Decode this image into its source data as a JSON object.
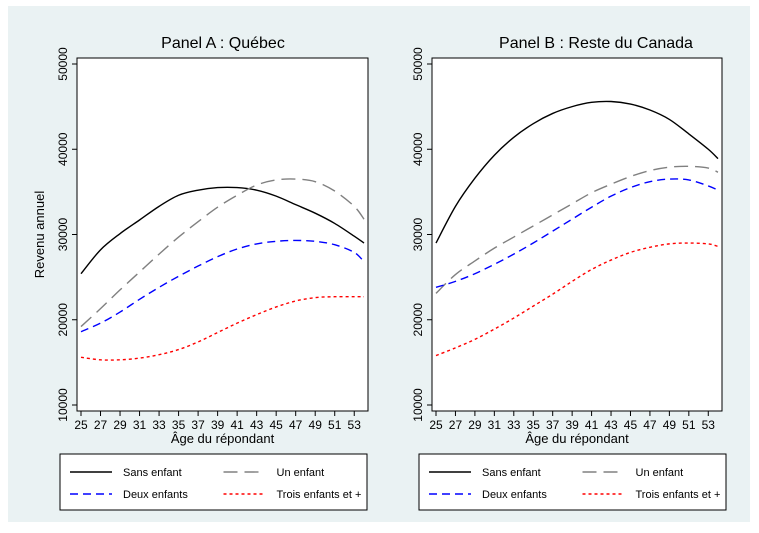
{
  "chart_data": [
    {
      "type": "line",
      "title": "Panel A : Québec",
      "xlabel": "Âge du répondant",
      "ylabel": "Revenu annuel",
      "xlim": [
        25,
        54
      ],
      "ylim": [
        10000,
        50000
      ],
      "x_ticks": [
        25,
        27,
        29,
        31,
        33,
        35,
        37,
        39,
        41,
        43,
        45,
        47,
        49,
        51,
        53
      ],
      "y_ticks": [
        10000,
        20000,
        30000,
        40000,
        50000
      ],
      "grid": false,
      "series": [
        {
          "name": "Sans enfant",
          "color": "#000000",
          "dash": "solid",
          "x": [
            25,
            27,
            29,
            31,
            33,
            35,
            37,
            39,
            41,
            43,
            45,
            47,
            49,
            51,
            53,
            54
          ],
          "y": [
            25400,
            28200,
            30100,
            31700,
            33300,
            34600,
            35200,
            35500,
            35500,
            35200,
            34500,
            33500,
            32500,
            31300,
            29800,
            29000
          ]
        },
        {
          "name": "Un enfant",
          "color": "#808080",
          "dash": "long",
          "x": [
            25,
            27,
            29,
            31,
            33,
            35,
            37,
            39,
            41,
            43,
            45,
            47,
            49,
            51,
            53,
            54
          ],
          "y": [
            19200,
            21300,
            23500,
            25600,
            27700,
            29700,
            31500,
            33200,
            34600,
            35800,
            36400,
            36500,
            36200,
            35100,
            33300,
            31800
          ]
        },
        {
          "name": "Deux enfants",
          "color": "#0000ff",
          "dash": "medium",
          "x": [
            25,
            27,
            29,
            31,
            33,
            35,
            37,
            39,
            41,
            43,
            45,
            47,
            49,
            51,
            53,
            54
          ],
          "y": [
            18600,
            19600,
            20900,
            22400,
            23800,
            25100,
            26300,
            27400,
            28300,
            28900,
            29200,
            29300,
            29200,
            28800,
            27900,
            26800
          ]
        },
        {
          "name": "Trois enfants et +",
          "color": "#ff0000",
          "dash": "short",
          "x": [
            25,
            27,
            29,
            31,
            33,
            35,
            37,
            39,
            41,
            43,
            45,
            47,
            49,
            51,
            53,
            54
          ],
          "y": [
            15600,
            15300,
            15300,
            15500,
            15900,
            16500,
            17400,
            18500,
            19600,
            20600,
            21500,
            22200,
            22600,
            22700,
            22700,
            22700
          ]
        }
      ]
    },
    {
      "type": "line",
      "title": "Panel B : Reste du Canada",
      "xlabel": "Âge du répondant",
      "ylabel": "",
      "xlim": [
        25,
        54
      ],
      "ylim": [
        10000,
        50000
      ],
      "x_ticks": [
        25,
        27,
        29,
        31,
        33,
        35,
        37,
        39,
        41,
        43,
        45,
        47,
        49,
        51,
        53
      ],
      "y_ticks": [
        10000,
        20000,
        30000,
        40000,
        50000
      ],
      "grid": false,
      "series": [
        {
          "name": "Sans enfant",
          "color": "#000000",
          "dash": "solid",
          "x": [
            25,
            27,
            29,
            31,
            33,
            35,
            37,
            39,
            41,
            43,
            45,
            47,
            49,
            51,
            53,
            54
          ],
          "y": [
            29000,
            33300,
            36600,
            39300,
            41400,
            43000,
            44200,
            45000,
            45500,
            45600,
            45300,
            44600,
            43500,
            41800,
            40000,
            38900
          ]
        },
        {
          "name": "Un enfant",
          "color": "#808080",
          "dash": "long",
          "x": [
            25,
            27,
            29,
            31,
            33,
            35,
            37,
            39,
            41,
            43,
            45,
            47,
            49,
            51,
            53,
            54
          ],
          "y": [
            23100,
            25300,
            26900,
            28400,
            29700,
            31000,
            32300,
            33600,
            34900,
            35900,
            36800,
            37500,
            37900,
            38000,
            37800,
            37300
          ]
        },
        {
          "name": "Deux enfants",
          "color": "#0000ff",
          "dash": "medium",
          "x": [
            25,
            27,
            29,
            31,
            33,
            35,
            37,
            39,
            41,
            43,
            45,
            47,
            49,
            51,
            53,
            54
          ],
          "y": [
            23800,
            24500,
            25400,
            26500,
            27700,
            29000,
            30400,
            31800,
            33200,
            34500,
            35500,
            36200,
            36500,
            36400,
            35700,
            35200
          ]
        },
        {
          "name": "Trois enfants et +",
          "color": "#ff0000",
          "dash": "short",
          "x": [
            25,
            27,
            29,
            31,
            33,
            35,
            37,
            39,
            41,
            43,
            45,
            47,
            49,
            51,
            53,
            54
          ],
          "y": [
            15800,
            16700,
            17700,
            18900,
            20200,
            21600,
            23000,
            24500,
            25900,
            27000,
            27900,
            28500,
            28900,
            29000,
            28900,
            28600
          ]
        }
      ],
      "legend": "below-plot"
    }
  ]
}
